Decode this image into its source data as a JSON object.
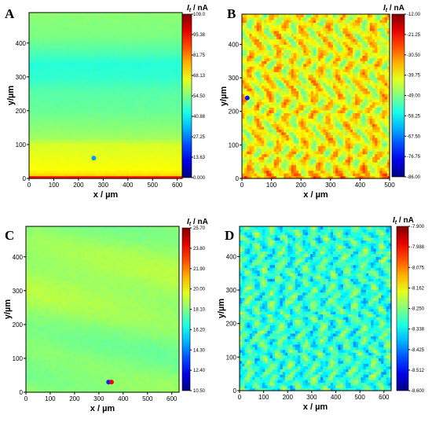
{
  "chart_data": [
    {
      "type": "heatmap",
      "panel": "A",
      "xlabel": "x / µm",
      "ylabel": "y/µm",
      "xlim": [
        0,
        620
      ],
      "ylim": [
        0,
        490
      ],
      "xticks": [
        "0",
        "100",
        "200",
        "300",
        "400",
        "500",
        "600"
      ],
      "yticks": [
        "0",
        "100",
        "200",
        "300",
        "400"
      ],
      "colorbar_title": "It / nA",
      "colorbar_ticks": [
        "109.0",
        "95.38",
        "81.75",
        "68.13",
        "54.50",
        "40.88",
        "27.25",
        "13.63",
        "0.000"
      ],
      "colorbar_range": [
        0.0,
        109.0
      ],
      "pattern": "horizontal_bands",
      "band_profile": [
        {
          "y": 0,
          "value": 105
        },
        {
          "y": 5,
          "value": 90
        },
        {
          "y": 12,
          "value": 72
        },
        {
          "y": 25,
          "value": 68
        },
        {
          "y": 60,
          "value": 66
        },
        {
          "y": 100,
          "value": 64
        },
        {
          "y": 120,
          "value": 58
        },
        {
          "y": 200,
          "value": 52
        },
        {
          "y": 260,
          "value": 50
        },
        {
          "y": 300,
          "value": 46
        },
        {
          "y": 340,
          "value": 45
        },
        {
          "y": 380,
          "value": 50
        },
        {
          "y": 420,
          "value": 54
        },
        {
          "y": 490,
          "value": 56
        }
      ],
      "spots": [
        {
          "x": 262,
          "y": 60,
          "value": 30
        }
      ]
    },
    {
      "type": "heatmap",
      "panel": "B",
      "xlabel": "x / µm",
      "ylabel": "y/µm",
      "xlim": [
        0,
        500
      ],
      "ylim": [
        0,
        490
      ],
      "xticks": [
        "0",
        "100",
        "200",
        "300",
        "400",
        "500"
      ],
      "yticks": [
        "0",
        "100",
        "200",
        "300",
        "400"
      ],
      "colorbar_title": "It / nA",
      "colorbar_ticks": [
        "-12.00",
        "-21.25",
        "-30.50",
        "-39.75",
        "-49.00",
        "-58.25",
        "-67.50",
        "-76.75",
        "-86.00"
      ],
      "colorbar_range": [
        -86.0,
        -12.0
      ],
      "pattern": "yellow_lattice",
      "spots": [
        {
          "x": 18,
          "y": 240,
          "value": -75
        }
      ]
    },
    {
      "type": "heatmap",
      "panel": "C",
      "xlabel": "x / µm",
      "ylabel": "y/µm",
      "xlim": [
        0,
        630
      ],
      "ylim": [
        0,
        490
      ],
      "xticks": [
        "0",
        "100",
        "200",
        "300",
        "400",
        "500",
        "600"
      ],
      "yticks": [
        "0",
        "100",
        "200",
        "300",
        "400"
      ],
      "colorbar_title": "It / nA",
      "colorbar_ticks": [
        "25.70",
        "23.80",
        "21.90",
        "20.00",
        "18.10",
        "16.20",
        "14.30",
        "12.40",
        "10.50"
      ],
      "colorbar_range": [
        10.5,
        25.7
      ],
      "pattern": "smooth_green",
      "spots": [
        {
          "x": 340,
          "y": 30,
          "value": 13
        },
        {
          "x": 352,
          "y": 30,
          "value": 24
        }
      ]
    },
    {
      "type": "heatmap",
      "panel": "D",
      "xlabel": "x / µm",
      "ylabel": "y/µm",
      "xlim": [
        0,
        630
      ],
      "ylim": [
        0,
        490
      ],
      "xticks": [
        "0",
        "100",
        "200",
        "300",
        "400",
        "500",
        "600"
      ],
      "yticks": [
        "0",
        "100",
        "200",
        "300",
        "400"
      ],
      "colorbar_title": "It / nA",
      "colorbar_ticks": [
        "-7.900",
        "-7.988",
        "-8.075",
        "-8.162",
        "-8.250",
        "-8.338",
        "-8.425",
        "-8.512",
        "-8.600"
      ],
      "colorbar_range": [
        -8.6,
        -7.9
      ],
      "pattern": "green_cyan_lattice",
      "spots": []
    }
  ]
}
